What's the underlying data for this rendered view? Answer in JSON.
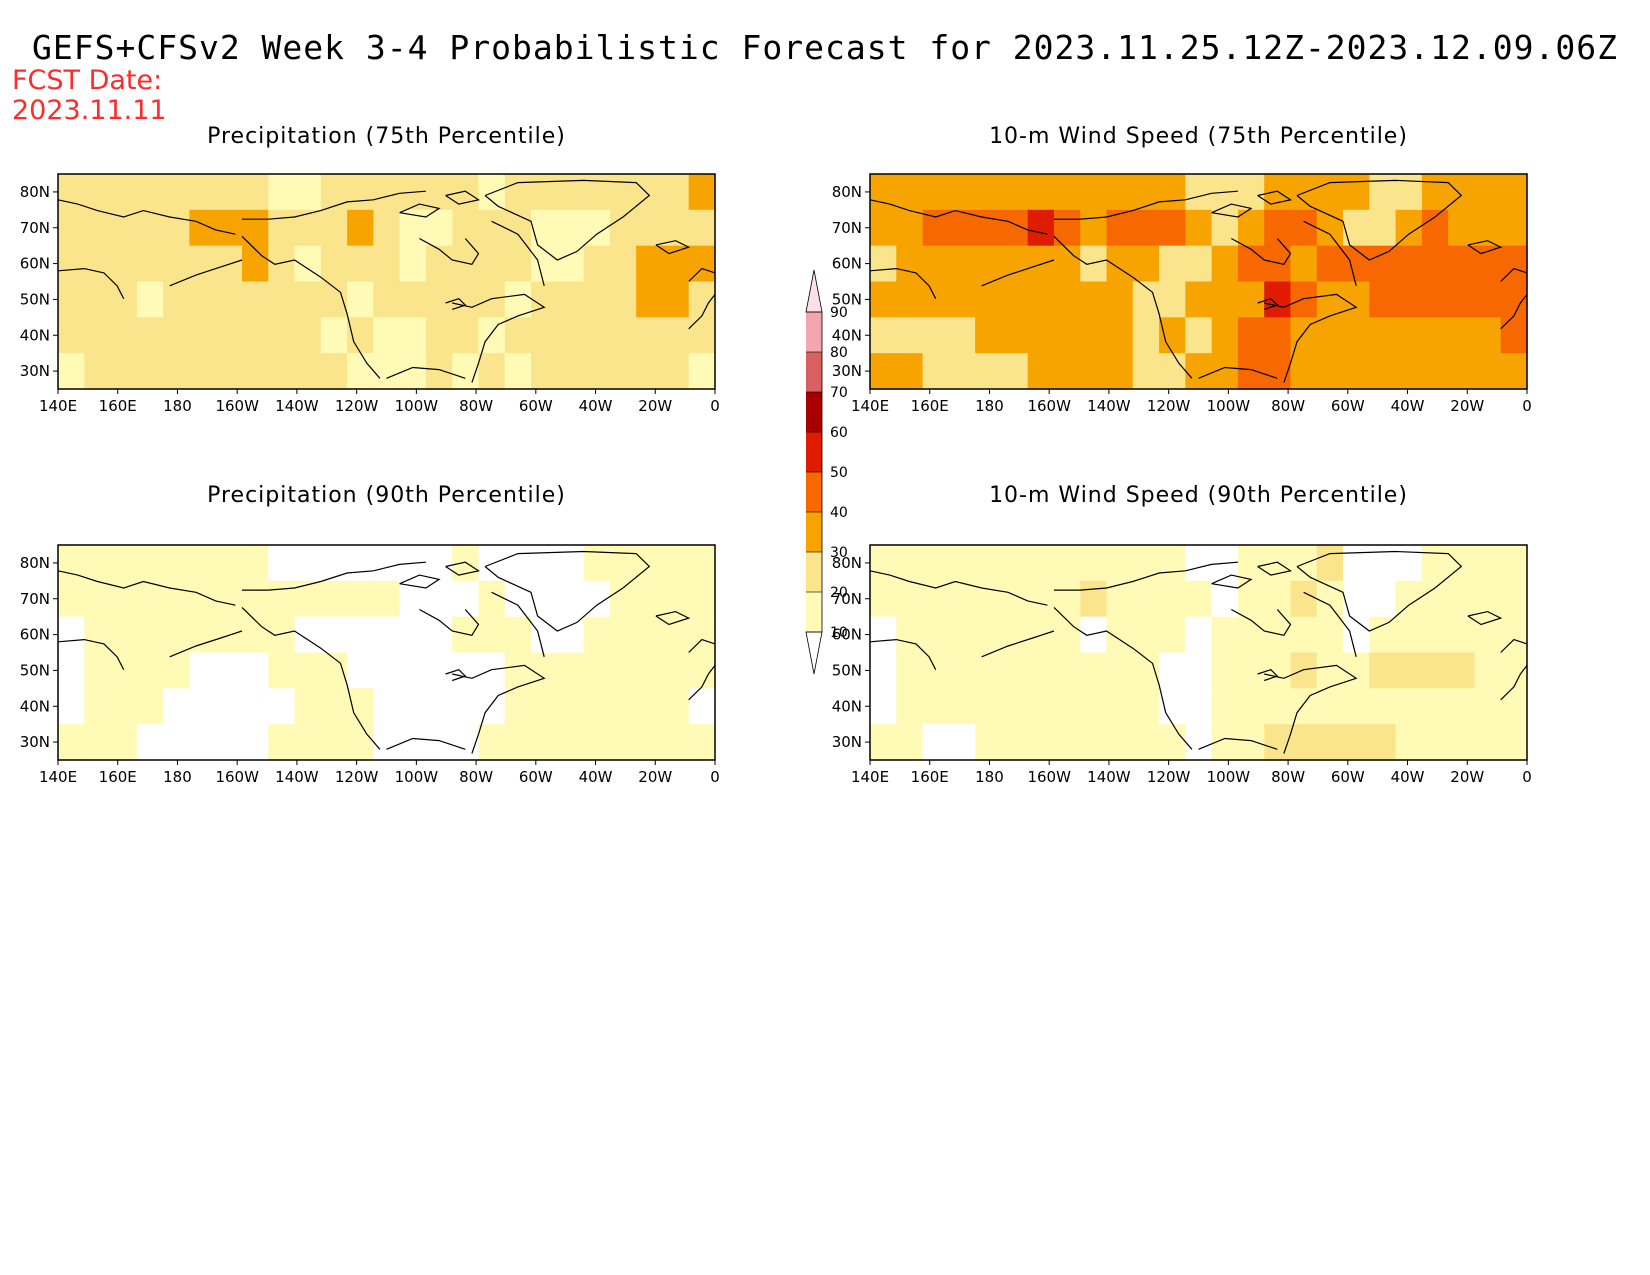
{
  "header": {
    "title": "GEFS+CFSv2 Week 3-4 Probabilistic Forecast for 2023.11.25.12Z-2023.12.09.06Z",
    "fcst_label": "FCST Date:",
    "fcst_date": "2023.11.11"
  },
  "panels": [
    {
      "id": "precip75",
      "title": "Precipitation (75th Percentile)"
    },
    {
      "id": "wind75",
      "title": "10-m Wind Speed (75th Percentile)"
    },
    {
      "id": "precip90",
      "title": "Precipitation (90th Percentile)"
    },
    {
      "id": "wind90",
      "title": "10-m Wind Speed (90th Percentile)"
    }
  ],
  "axes": {
    "lon_labels": [
      "140E",
      "160E",
      "180",
      "160W",
      "140W",
      "120W",
      "100W",
      "80W",
      "60W",
      "40W",
      "20W",
      "0"
    ],
    "lat_labels": [
      "80N",
      "70N",
      "60N",
      "50N",
      "40N",
      "30N"
    ]
  },
  "colorbar": {
    "levels": [
      "10",
      "20",
      "30",
      "40",
      "50",
      "60",
      "70",
      "80",
      "90"
    ],
    "colors": [
      "#fffbb7",
      "#fbe58c",
      "#f7a400",
      "#f86800",
      "#e01c00",
      "#a80000",
      "#d96060",
      "#f4a6ae",
      "#ffe0e6"
    ]
  },
  "map_fields": {
    "precip75": [
      [
        20,
        20,
        20,
        20,
        20,
        20,
        20,
        20,
        10,
        10,
        20,
        20,
        20,
        20,
        20,
        20,
        10,
        20,
        20,
        20,
        20,
        20,
        20,
        20,
        30
      ],
      [
        20,
        20,
        20,
        20,
        20,
        30,
        30,
        30,
        20,
        20,
        20,
        30,
        20,
        10,
        10,
        20,
        20,
        20,
        10,
        10,
        10,
        20,
        20,
        20,
        20
      ],
      [
        20,
        20,
        20,
        20,
        20,
        20,
        20,
        30,
        20,
        10,
        20,
        20,
        20,
        10,
        20,
        20,
        20,
        20,
        10,
        10,
        20,
        20,
        30,
        30,
        30
      ],
      [
        20,
        20,
        20,
        10,
        20,
        20,
        20,
        20,
        20,
        20,
        20,
        10,
        20,
        20,
        20,
        20,
        20,
        10,
        20,
        20,
        20,
        20,
        30,
        30,
        20
      ],
      [
        20,
        20,
        20,
        20,
        20,
        20,
        20,
        20,
        20,
        20,
        10,
        20,
        10,
        10,
        20,
        20,
        10,
        20,
        20,
        20,
        20,
        20,
        20,
        20,
        20
      ],
      [
        10,
        20,
        20,
        20,
        20,
        20,
        20,
        20,
        20,
        20,
        20,
        10,
        10,
        10,
        20,
        10,
        20,
        10,
        20,
        20,
        20,
        20,
        20,
        20,
        10
      ]
    ],
    "wind75": [
      [
        30,
        30,
        30,
        30,
        30,
        30,
        30,
        30,
        30,
        30,
        30,
        30,
        20,
        20,
        20,
        30,
        30,
        30,
        30,
        20,
        20,
        30,
        30,
        30,
        30
      ],
      [
        30,
        30,
        40,
        40,
        40,
        40,
        50,
        40,
        30,
        40,
        40,
        40,
        30,
        20,
        30,
        40,
        40,
        30,
        20,
        20,
        30,
        40,
        30,
        30,
        30
      ],
      [
        20,
        30,
        30,
        30,
        30,
        30,
        30,
        30,
        20,
        30,
        30,
        20,
        20,
        30,
        40,
        40,
        30,
        40,
        40,
        40,
        40,
        40,
        40,
        40,
        40
      ],
      [
        30,
        30,
        30,
        30,
        30,
        30,
        30,
        30,
        30,
        30,
        20,
        20,
        30,
        30,
        30,
        50,
        40,
        30,
        30,
        40,
        40,
        40,
        40,
        40,
        40
      ],
      [
        20,
        20,
        20,
        20,
        30,
        30,
        30,
        30,
        30,
        30,
        20,
        30,
        20,
        30,
        40,
        40,
        30,
        30,
        30,
        30,
        30,
        30,
        30,
        30,
        40
      ],
      [
        30,
        30,
        20,
        20,
        20,
        20,
        30,
        30,
        30,
        30,
        20,
        20,
        30,
        30,
        40,
        40,
        30,
        30,
        30,
        30,
        30,
        30,
        30,
        30,
        30
      ]
    ],
    "precip90": [
      [
        10,
        10,
        10,
        10,
        10,
        10,
        10,
        10,
        0,
        0,
        0,
        0,
        0,
        0,
        0,
        10,
        0,
        0,
        0,
        0,
        10,
        10,
        10,
        10,
        10
      ],
      [
        10,
        10,
        10,
        10,
        10,
        10,
        10,
        10,
        10,
        10,
        10,
        10,
        10,
        0,
        0,
        0,
        10,
        0,
        0,
        0,
        0,
        10,
        10,
        10,
        10
      ],
      [
        0,
        10,
        10,
        10,
        10,
        10,
        10,
        10,
        10,
        0,
        0,
        0,
        0,
        0,
        0,
        10,
        10,
        10,
        0,
        0,
        10,
        10,
        10,
        10,
        10
      ],
      [
        0,
        10,
        10,
        10,
        10,
        0,
        0,
        0,
        10,
        10,
        10,
        0,
        0,
        0,
        0,
        0,
        0,
        10,
        10,
        10,
        10,
        10,
        10,
        10,
        10
      ],
      [
        0,
        10,
        10,
        10,
        0,
        0,
        0,
        0,
        0,
        10,
        10,
        10,
        0,
        0,
        0,
        0,
        0,
        10,
        10,
        10,
        10,
        10,
        10,
        10,
        0
      ],
      [
        10,
        10,
        10,
        0,
        0,
        0,
        0,
        0,
        10,
        10,
        10,
        10,
        0,
        0,
        0,
        0,
        10,
        10,
        10,
        10,
        10,
        10,
        10,
        10,
        10
      ]
    ],
    "wind90": [
      [
        10,
        10,
        10,
        10,
        10,
        10,
        10,
        10,
        10,
        10,
        10,
        10,
        0,
        0,
        10,
        10,
        10,
        20,
        0,
        0,
        0,
        10,
        10,
        10,
        10
      ],
      [
        10,
        10,
        10,
        10,
        10,
        10,
        10,
        10,
        20,
        10,
        10,
        10,
        10,
        0,
        10,
        10,
        20,
        10,
        0,
        0,
        10,
        10,
        10,
        10,
        10
      ],
      [
        0,
        10,
        10,
        10,
        10,
        10,
        10,
        10,
        0,
        10,
        10,
        10,
        0,
        10,
        10,
        10,
        10,
        10,
        0,
        10,
        10,
        10,
        10,
        10,
        10
      ],
      [
        0,
        10,
        10,
        10,
        10,
        10,
        10,
        10,
        10,
        10,
        10,
        0,
        0,
        10,
        10,
        10,
        20,
        10,
        10,
        20,
        20,
        20,
        20,
        10,
        10
      ],
      [
        0,
        10,
        10,
        10,
        10,
        10,
        10,
        10,
        10,
        10,
        10,
        0,
        0,
        10,
        10,
        10,
        10,
        10,
        10,
        10,
        10,
        10,
        10,
        10,
        10
      ],
      [
        10,
        10,
        0,
        0,
        10,
        10,
        10,
        10,
        10,
        10,
        10,
        10,
        0,
        10,
        10,
        20,
        20,
        20,
        20,
        20,
        10,
        10,
        10,
        10,
        10
      ]
    ]
  }
}
